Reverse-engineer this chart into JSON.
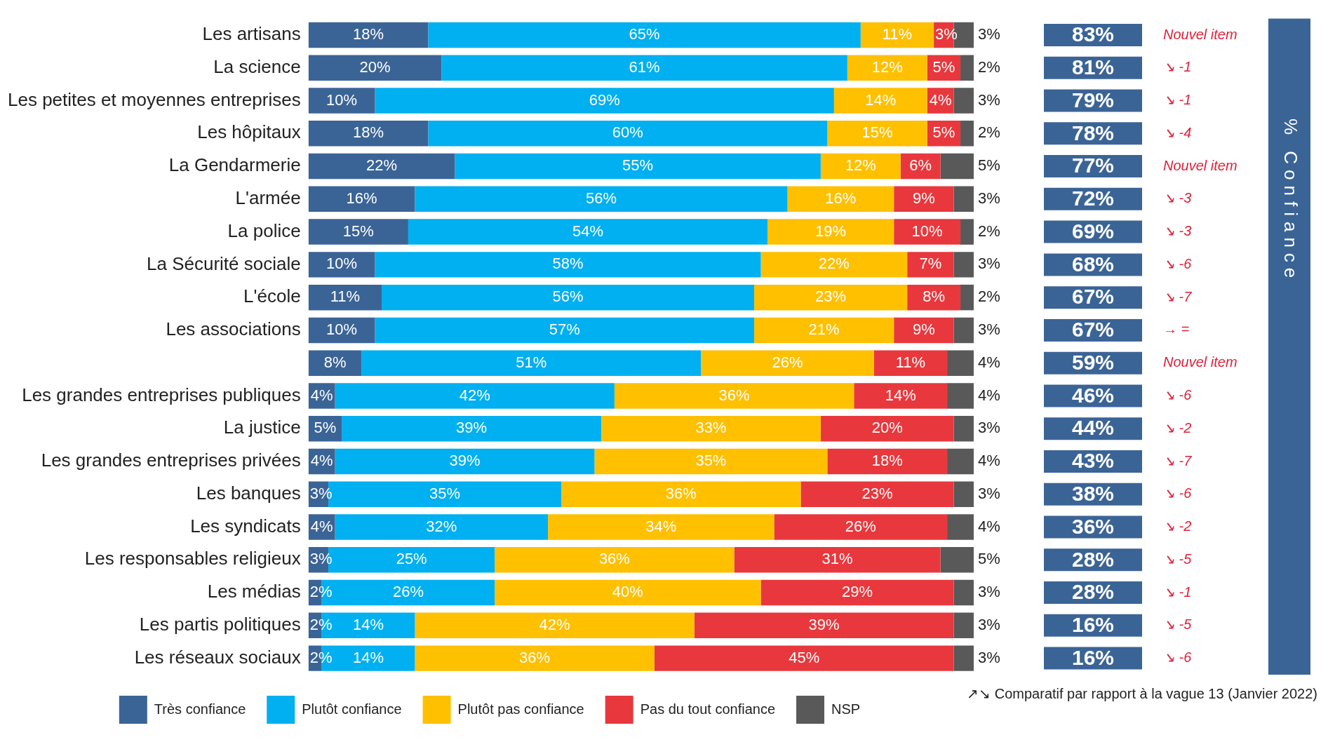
{
  "chart_data": {
    "type": "bar",
    "orientation": "horizontal",
    "stacked": true,
    "legend": "bottom",
    "categories": [
      "Les artisans",
      "La science",
      "Les petites et moyennes entreprises",
      "Les hôpitaux",
      "La Gendarmerie",
      "L'armée",
      "La police",
      "La Sécurité sociale",
      "L'école",
      "Les associations",
      null,
      "Les grandes entreprises publiques",
      "La justice",
      "Les grandes entreprises privées",
      "Les banques",
      "Les syndicats",
      "Les responsables religieux",
      "Les médias",
      "Les partis politiques",
      "Les réseaux sociaux"
    ],
    "series": [
      {
        "name": "Très confiance",
        "color": "#3b6496",
        "values": [
          18,
          20,
          10,
          18,
          22,
          16,
          15,
          10,
          11,
          10,
          8,
          4,
          5,
          4,
          3,
          4,
          3,
          2,
          2,
          2
        ],
        "value_labels": [
          "18%",
          "20%",
          "10%",
          "18%",
          "22%",
          "16%",
          "15%",
          "10%",
          "11%",
          "10%",
          "8%",
          "4%",
          "5%",
          "4%",
          "3%",
          "4%",
          "3%",
          "2%",
          "2%",
          "2%"
        ]
      },
      {
        "name": "Plutôt confiance",
        "color": "#00b0f0",
        "values": [
          65,
          61,
          69,
          60,
          55,
          56,
          54,
          58,
          56,
          57,
          51,
          42,
          39,
          39,
          35,
          32,
          25,
          26,
          14,
          14
        ],
        "value_labels": [
          "65%",
          "61%",
          "69%",
          "60%",
          "55%",
          "56%",
          "54%",
          "58%",
          "56%",
          "57%",
          "51%",
          "42%",
          "39%",
          "39%",
          "35%",
          "32%",
          "25%",
          "26%",
          "14%",
          "14%"
        ]
      },
      {
        "name": "Plutôt pas confiance",
        "color": "#ffc000",
        "values": [
          11,
          12,
          14,
          15,
          12,
          16,
          19,
          22,
          23,
          21,
          26,
          36,
          33,
          35,
          36,
          34,
          36,
          40,
          42,
          36
        ],
        "value_labels": [
          "11%",
          "12%",
          "14%",
          "15%",
          "12%",
          "16%",
          "19%",
          "22%",
          "23%",
          "21%",
          "26%",
          "36%",
          "33%",
          "35%",
          "36%",
          "34%",
          "36%",
          "40%",
          "42%",
          "36%"
        ]
      },
      {
        "name": "Pas du tout confiance",
        "color": "#e8383d",
        "values": [
          3,
          5,
          4,
          5,
          6,
          9,
          10,
          7,
          8,
          9,
          11,
          14,
          20,
          18,
          23,
          26,
          31,
          29,
          39,
          45
        ],
        "value_labels": [
          "3%",
          "5%",
          "4%",
          "5%",
          "6%",
          "9%",
          "10%",
          "7%",
          "8%",
          "9%",
          "11%",
          "14%",
          "20%",
          "18%",
          "23%",
          "26%",
          "31%",
          "29%",
          "39%",
          "45%"
        ]
      },
      {
        "name": "NSP",
        "color": "#595959",
        "values": [
          3,
          2,
          3,
          2,
          5,
          3,
          2,
          3,
          2,
          3,
          4,
          4,
          3,
          4,
          3,
          4,
          5,
          3,
          3,
          3
        ],
        "value_labels": [
          "3%",
          "2%",
          "3%",
          "2%",
          "5%",
          "3%",
          "2%",
          "3%",
          "2%",
          "3%",
          "4%",
          "4%",
          "3%",
          "4%",
          "3%",
          "4%",
          "5%",
          "3%",
          "3%",
          "3%"
        ]
      }
    ],
    "annotations": [
      "83%",
      "81%",
      "79%",
      "78%",
      "77%",
      "72%",
      "69%",
      "68%",
      "67%",
      "67%",
      "59%",
      "46%",
      "44%",
      "43%",
      "38%",
      "36%",
      "28%",
      "28%",
      "16%",
      "16%",
      "Nouvel item",
      "↘ -1",
      "↘ -1",
      "↘ -4",
      "Nouvel item",
      "↘ -3",
      "↘ -3",
      "↘ -6",
      "↘ -7",
      "→ =",
      "Nouvel item",
      "↘ -6",
      "↘ -2",
      "↘ -7",
      "↘ -6",
      "↘ -2",
      "↘ -5",
      "↘ -1",
      "↘ -5",
      "↘ -6",
      "% Confiance",
      "↗↘ Comparatif par rapport à la vague 13 (Janvier 2022)"
    ]
  }
}
